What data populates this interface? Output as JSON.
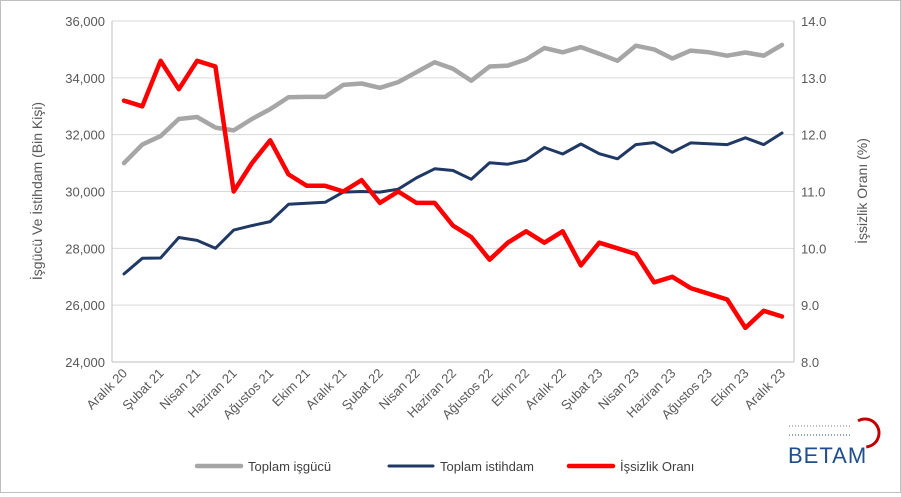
{
  "chart_data": {
    "type": "line",
    "categories": [
      "Aralık 20",
      "Ocak 21",
      "Şubat 21",
      "Mart 21",
      "Nisan 21",
      "Mayıs 21",
      "Haziran 21",
      "Temmuz 21",
      "Ağustos 21",
      "Eylül 21",
      "Ekim 21",
      "Kasım 21",
      "Aralık 21",
      "Ocak 22",
      "Şubat 22",
      "Mart 22",
      "Nisan 22",
      "Mayıs 22",
      "Haziran 22",
      "Temmuz 22",
      "Ağustos 22",
      "Eylül 22",
      "Ekim 22",
      "Kasım 22",
      "Aralık 22",
      "Ocak 23",
      "Şubat 23",
      "Mart 23",
      "Nisan 23",
      "Mayıs 23",
      "Haziran 23",
      "Temmuz 23",
      "Ağustos 23",
      "Eylül 23",
      "Ekim 23",
      "Kasım 23",
      "Aralık 23"
    ],
    "tick_labels": [
      "Aralık 20",
      "Şubat 21",
      "Nisan 21",
      "Haziran 21",
      "Ağustos 21",
      "Ekim 21",
      "Aralık 21",
      "Şubat 22",
      "Nisan 22",
      "Haziran 22",
      "Ağustos 22",
      "Ekim 22",
      "Aralık 22",
      "Şubat 23",
      "Nisan 23",
      "Haziran 23",
      "Ağustos 23",
      "Ekim 23",
      "Aralık 23"
    ],
    "ylabel": "İşgücü Ve İstihdam (Bin Kişi)",
    "y2label": "İşsizlik Oranı (%)",
    "ylim": [
      24000,
      36000
    ],
    "y_ticks": [
      "24,000",
      "26,000",
      "28,000",
      "30,000",
      "32,000",
      "34,000",
      "36,000"
    ],
    "y_tick_values": [
      24000,
      26000,
      28000,
      30000,
      32000,
      34000,
      36000
    ],
    "y2lim": [
      8.0,
      14.0
    ],
    "y2_ticks": [
      "8.0",
      "9.0",
      "10.0",
      "11.0",
      "12.0",
      "13.0",
      "14.0"
    ],
    "y2_tick_values": [
      8,
      9,
      10,
      11,
      12,
      13,
      14
    ],
    "grid": true,
    "legend_position": "bottom",
    "series": [
      {
        "name": "Toplam işgücü",
        "axis": "left",
        "color": "#a6a6a6",
        "values": [
          31000,
          31650,
          31950,
          32550,
          32620,
          32250,
          32150,
          32550,
          32900,
          33320,
          33330,
          33330,
          33750,
          33800,
          33650,
          33850,
          34200,
          34550,
          34320,
          33900,
          34400,
          34430,
          34650,
          35050,
          34900,
          35080,
          34850,
          34600,
          35130,
          35000,
          34680,
          34960,
          34900,
          34780,
          34890,
          34780,
          35160
        ]
      },
      {
        "name": "Toplam istihdam",
        "axis": "left",
        "color": "#1f3864",
        "values": [
          27100,
          27650,
          27660,
          28380,
          28280,
          28000,
          28640,
          28800,
          28940,
          29550,
          29590,
          29620,
          29980,
          30000,
          29980,
          30080,
          30480,
          30800,
          30740,
          30430,
          31010,
          30960,
          31100,
          31550,
          31320,
          31670,
          31330,
          31150,
          31650,
          31720,
          31380,
          31710,
          31680,
          31650,
          31890,
          31650,
          32060
        ]
      },
      {
        "name": "İşsizlik Oranı",
        "axis": "right",
        "color": "#ff0000",
        "values": [
          12.6,
          12.5,
          13.3,
          12.8,
          13.3,
          13.2,
          11.0,
          11.5,
          11.9,
          11.3,
          11.1,
          11.1,
          11.0,
          11.2,
          10.8,
          11.0,
          10.8,
          10.8,
          10.4,
          10.2,
          9.8,
          10.1,
          10.3,
          10.1,
          10.3,
          9.7,
          10.1,
          10.0,
          9.9,
          9.4,
          9.5,
          9.3,
          9.2,
          9.1,
          8.6,
          8.9,
          8.8
        ]
      }
    ]
  },
  "logo": {
    "text": "BETAM"
  }
}
